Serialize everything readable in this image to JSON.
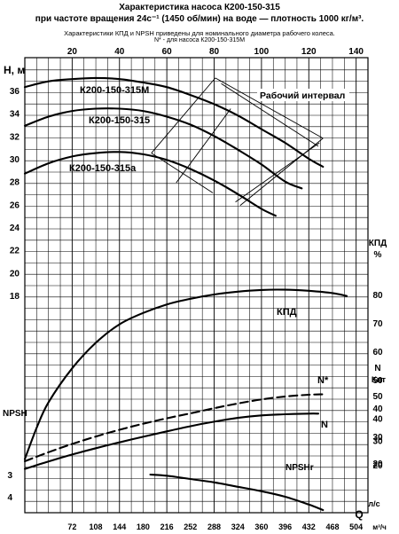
{
  "chart_data": {
    "type": "line",
    "title": "Характеристика насоса К200-150-315",
    "subtitle": "при частоте вращения 24с⁻¹ (1450 об/мин) на воде — плотность 1000 кг/м³.",
    "note": "Характеристики КПД и NPSH приведены для номинального диаметра рабочего колеса.",
    "note2": "N* - для насоса К200-150-315М",
    "x_axis": {
      "label_bottom": "Q",
      "unit_ls": "л/с",
      "unit_m3h": "м³/ч",
      "range": [
        0,
        145
      ],
      "ticks_top": [
        20,
        40,
        60,
        80,
        100,
        120,
        140
      ],
      "ticks_m3h": [
        72,
        108,
        144,
        180,
        216,
        252,
        288,
        324,
        360,
        396,
        432,
        468,
        504
      ]
    },
    "y_head": {
      "label": "H, м",
      "range": [
        0,
        37
      ],
      "ticks": [
        18,
        20,
        22,
        24,
        26,
        28,
        30,
        32,
        34,
        36
      ]
    },
    "y_npsh": {
      "label": "NPSH",
      "ticks": [
        3,
        4
      ]
    },
    "y_eff": {
      "label": "КПД",
      "unit": "%",
      "ticks": [
        20,
        30,
        40,
        50,
        60,
        70,
        80
      ]
    },
    "y_power": {
      "label": "N",
      "unit": "Квт",
      "ticks": [
        20,
        30,
        40,
        50
      ]
    },
    "series": [
      {
        "name": "К200-150-315М",
        "axis": "head",
        "color": "#000000",
        "x": [
          0,
          10,
          20,
          30,
          40,
          50,
          60,
          70,
          80,
          90,
          100,
          110,
          120,
          126
        ],
        "y": [
          36.3,
          36.8,
          37.0,
          37.1,
          37.0,
          36.7,
          36.3,
          35.6,
          34.8,
          33.8,
          32.6,
          31.4,
          30.0,
          29.3
        ]
      },
      {
        "name": "К200-150-315",
        "axis": "head",
        "color": "#000000",
        "x": [
          0,
          10,
          20,
          30,
          40,
          50,
          60,
          70,
          80,
          90,
          100,
          110,
          117
        ],
        "y": [
          32.9,
          33.7,
          34.2,
          34.4,
          34.4,
          34.2,
          33.7,
          33.0,
          32.0,
          30.8,
          29.5,
          28.0,
          27.4
        ]
      },
      {
        "name": "К200-150-315а",
        "axis": "head",
        "color": "#000000",
        "x": [
          0,
          10,
          20,
          30,
          40,
          50,
          60,
          70,
          80,
          90,
          100,
          106
        ],
        "y": [
          28.7,
          29.6,
          30.2,
          30.5,
          30.6,
          30.4,
          29.9,
          29.1,
          28.1,
          26.9,
          25.6,
          25.0
        ]
      },
      {
        "name": "КПД",
        "axis": "efficiency",
        "color": "#000000",
        "x": [
          0,
          5,
          10,
          20,
          30,
          40,
          50,
          60,
          70,
          80,
          90,
          100,
          110,
          120,
          130,
          136
        ],
        "y": [
          22,
          33,
          42,
          54,
          63,
          69.5,
          73.5,
          76.5,
          78.5,
          80,
          81,
          81.6,
          81.7,
          81.3,
          80.5,
          79.5
        ]
      },
      {
        "name": "N*",
        "axis": "power",
        "dashed": true,
        "color": "#000000",
        "x": [
          0,
          10,
          20,
          30,
          40,
          50,
          60,
          70,
          80,
          90,
          100,
          110,
          120,
          126
        ],
        "y": [
          20.8,
          24.8,
          28.5,
          31.8,
          34.8,
          37.5,
          39.9,
          42.1,
          44.4,
          46.5,
          48.3,
          49.6,
          50.4,
          50.6
        ]
      },
      {
        "name": "N",
        "axis": "power",
        "color": "#000000",
        "x": [
          0,
          10,
          20,
          30,
          40,
          50,
          60,
          70,
          80,
          90,
          100,
          110,
          120,
          124
        ],
        "y": [
          17.4,
          20.7,
          23.8,
          26.6,
          29.2,
          31.7,
          34.1,
          36.4,
          38.4,
          40.1,
          41.2,
          41.7,
          42.0,
          42.0
        ]
      },
      {
        "name": "NPSHr",
        "axis": "npsh",
        "color": "#000000",
        "x": [
          53,
          60,
          70,
          80,
          90,
          100,
          110,
          120,
          126
        ],
        "y": [
          3.0,
          3.05,
          3.2,
          3.35,
          3.55,
          3.75,
          4.0,
          4.35,
          4.6
        ]
      }
    ],
    "annotations": {
      "operating_range": "Рабочий интервал"
    },
    "grid": true,
    "legend": "none"
  }
}
